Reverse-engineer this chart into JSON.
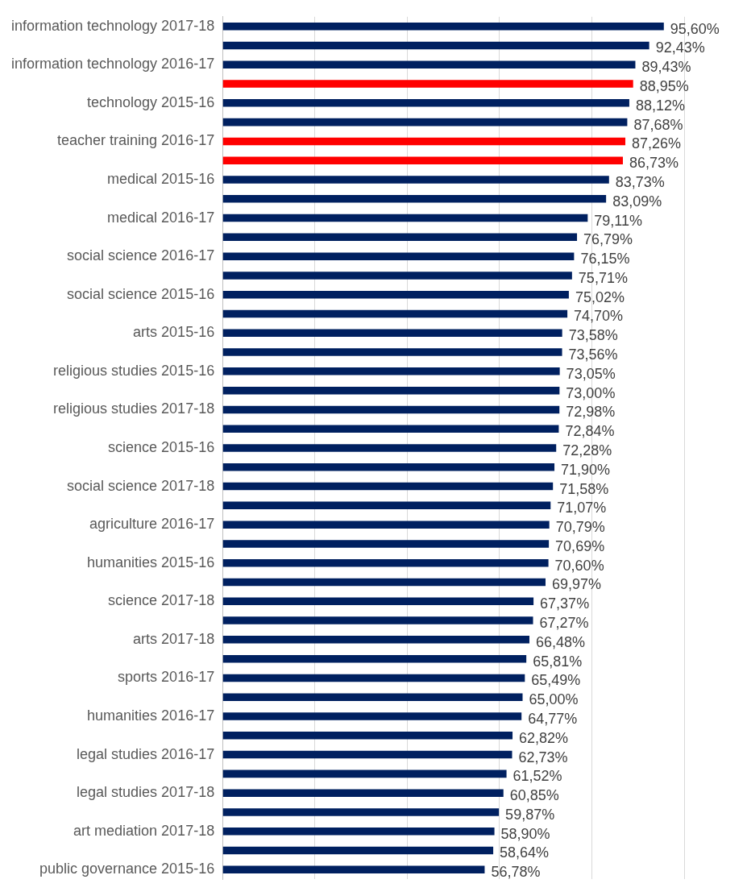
{
  "chart_data": {
    "type": "bar",
    "orientation": "horizontal",
    "categories": [
      "information technology 2017-18",
      null,
      "information technology 2016-17",
      null,
      "technology 2015-16",
      null,
      "teacher training 2016-17",
      null,
      "medical 2015-16",
      null,
      "medical 2016-17",
      null,
      "social science 2016-17",
      null,
      "social science 2015-16",
      null,
      "arts 2015-16",
      null,
      "religious studies 2015-16",
      null,
      "religious studies 2017-18",
      null,
      "science 2015-16",
      null,
      "social science 2017-18",
      null,
      "agriculture 2016-17",
      null,
      "humanities 2015-16",
      null,
      "science 2017-18",
      null,
      "arts 2017-18",
      null,
      "sports 2016-17",
      null,
      "humanities 2016-17",
      null,
      "legal studies 2016-17",
      null,
      "legal studies 2017-18",
      null,
      "art mediation 2017-18",
      null,
      "public governance 2015-16"
    ],
    "values": [
      95.6,
      92.43,
      89.43,
      88.95,
      88.12,
      87.68,
      87.26,
      86.73,
      83.73,
      83.09,
      79.11,
      76.79,
      76.15,
      75.71,
      75.02,
      74.7,
      73.58,
      73.56,
      73.05,
      73.0,
      72.98,
      72.84,
      72.28,
      71.9,
      71.58,
      71.07,
      70.79,
      70.69,
      70.6,
      69.97,
      67.37,
      67.27,
      66.48,
      65.81,
      65.49,
      65.0,
      64.77,
      62.82,
      62.73,
      61.52,
      60.85,
      59.87,
      58.9,
      58.64,
      56.78
    ],
    "value_labels": [
      "95,60%",
      "92,43%",
      "89,43%",
      "88,95%",
      "88,12%",
      "87,68%",
      "87,26%",
      "86,73%",
      "83,73%",
      "83,09%",
      "79,11%",
      "76,79%",
      "76,15%",
      "75,71%",
      "75,02%",
      "74,70%",
      "73,58%",
      "73,56%",
      "73,05%",
      "73,00%",
      "72,98%",
      "72,84%",
      "72,28%",
      "71,90%",
      "71,58%",
      "71,07%",
      "70,79%",
      "70,69%",
      "70,60%",
      "69,97%",
      "67,37%",
      "67,27%",
      "66,48%",
      "65,81%",
      "65,49%",
      "65,00%",
      "64,77%",
      "62,82%",
      "62,73%",
      "61,52%",
      "60,85%",
      "59,87%",
      "58,90%",
      "58,64%",
      "56,78%"
    ],
    "colors": [
      "#002060",
      "#002060",
      "#002060",
      "#ff0000",
      "#002060",
      "#002060",
      "#ff0000",
      "#ff0000",
      "#002060",
      "#002060",
      "#002060",
      "#002060",
      "#002060",
      "#002060",
      "#002060",
      "#002060",
      "#002060",
      "#002060",
      "#002060",
      "#002060",
      "#002060",
      "#002060",
      "#002060",
      "#002060",
      "#002060",
      "#002060",
      "#002060",
      "#002060",
      "#002060",
      "#002060",
      "#002060",
      "#002060",
      "#002060",
      "#002060",
      "#002060",
      "#002060",
      "#002060",
      "#002060",
      "#002060",
      "#002060",
      "#002060",
      "#002060",
      "#002060",
      "#002060",
      "#002060"
    ],
    "xlim": [
      0,
      100
    ],
    "xticks": [
      {
        "value": 0,
        "label": null
      },
      {
        "value": 20,
        "label": null
      },
      {
        "value": 40,
        "label": null
      },
      {
        "value": 60,
        "label": null
      },
      {
        "value": 80,
        "label": null
      },
      {
        "value": 100,
        "label": null
      }
    ],
    "tick_labels": "y",
    "grid": "x",
    "legend": false
  }
}
